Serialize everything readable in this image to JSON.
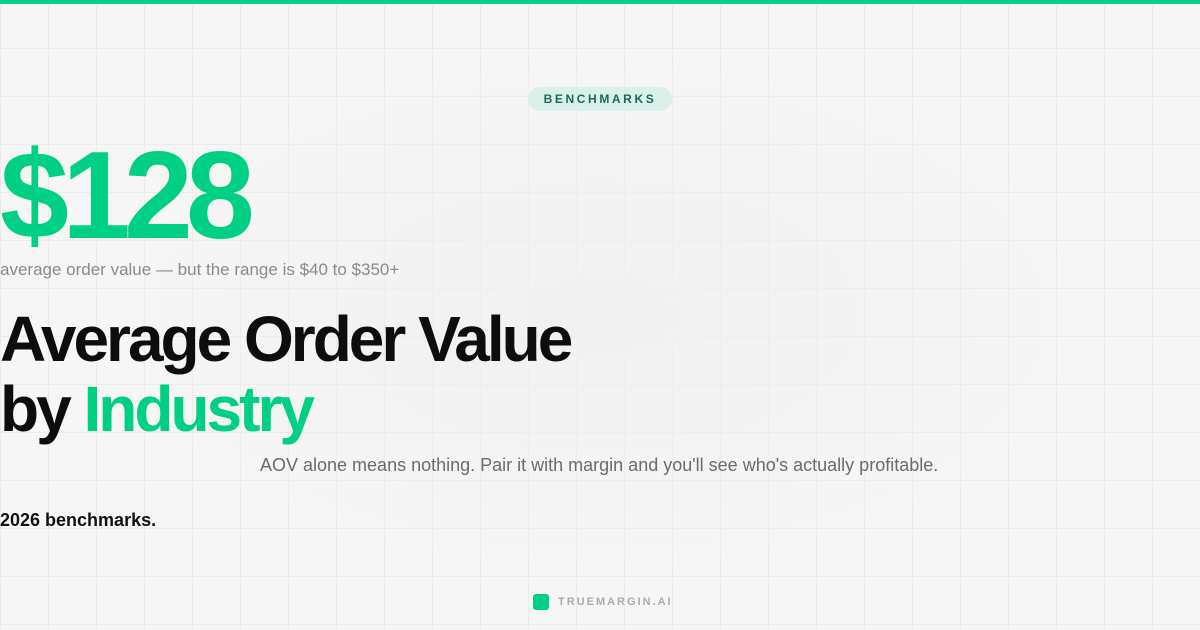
{
  "colors": {
    "accent": "#00d084",
    "badge_bg": "#d9f1ea",
    "badge_text": "#166b5a"
  },
  "badge": "BENCHMARKS",
  "hero_value": "$128",
  "hero_subtitle": "average order value — but the range is $40 to $350+",
  "title": {
    "line1": "Average Order Value",
    "line2_prefix": "by ",
    "line2_accent": "Industry"
  },
  "description": "AOV alone means nothing. Pair it with margin and you'll see who's actually profitable.",
  "highlight": "2026 benchmarks.",
  "brand": {
    "name": "TRUEMARGIN.AI",
    "icon": "rounded-square-logo-icon"
  }
}
